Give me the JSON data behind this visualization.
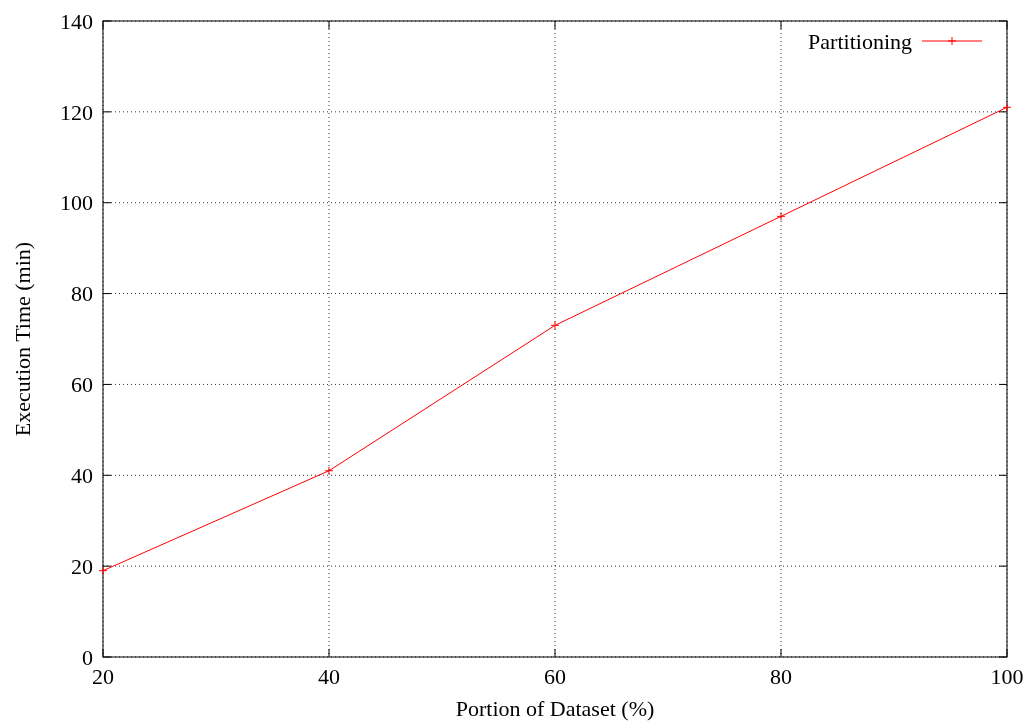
{
  "chart_data": {
    "type": "line",
    "xlabel": "Portion of Dataset (%)",
    "ylabel": "Execution Time (min)",
    "x": [
      20,
      40,
      60,
      80,
      100
    ],
    "series": [
      {
        "name": "Partitioning",
        "color": "#ff0000",
        "values": [
          19,
          41,
          73,
          97,
          121
        ]
      }
    ],
    "xlim": [
      20,
      100
    ],
    "xticks": [
      20,
      40,
      60,
      80,
      100
    ],
    "ylim": [
      0,
      140
    ],
    "yticks": [
      0,
      20,
      40,
      60,
      80,
      100,
      120,
      140
    ],
    "grid": true,
    "legend": "top right",
    "marker": "cross",
    "line_style": "solid"
  }
}
